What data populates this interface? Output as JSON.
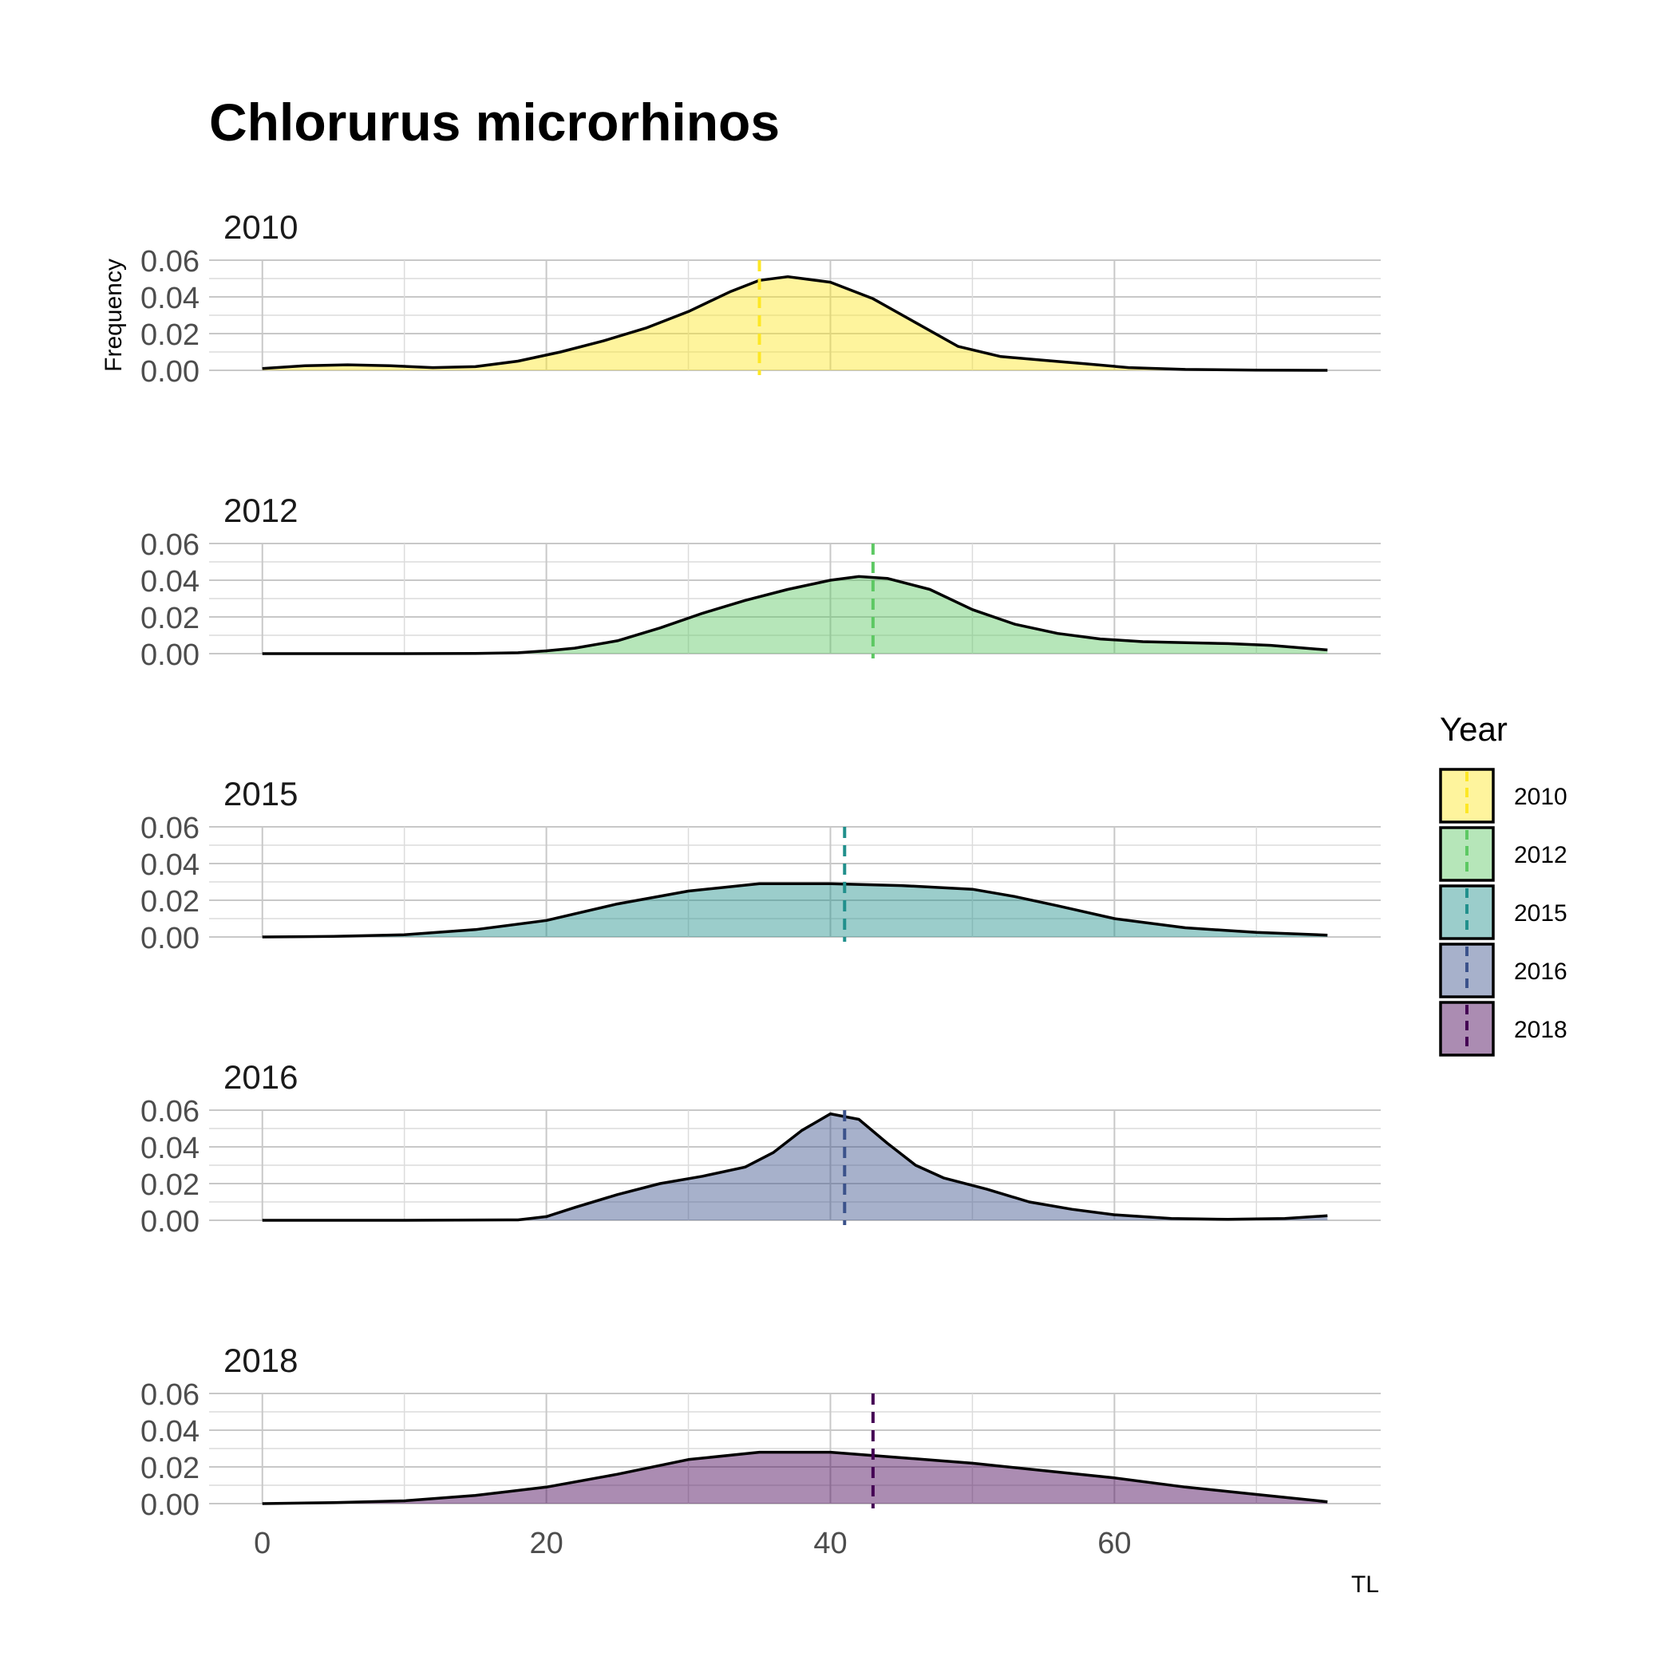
{
  "chart_data": {
    "type": "area",
    "title": "Chlorurus microrhinos",
    "xlabel": "TL",
    "ylabel": "Frequency",
    "xlim": [
      -3.75,
      78.75
    ],
    "ylim": [
      0,
      0.06
    ],
    "x_ticks": [
      0,
      20,
      40,
      60
    ],
    "x_tick_labels": [
      "0",
      "20",
      "40",
      "60"
    ],
    "y_ticks": [
      0,
      0.02,
      0.04,
      0.06
    ],
    "y_tick_labels": [
      "0.00",
      "0.02",
      "0.04",
      "0.06"
    ],
    "grid": true,
    "legend": {
      "title": "Year",
      "placement": "right",
      "entries": [
        "2010",
        "2012",
        "2015",
        "2016",
        "2018"
      ]
    },
    "series": [
      {
        "name": "2010",
        "color": "#FDE725",
        "mean": 35,
        "x": [
          0,
          3,
          6,
          9,
          12,
          15,
          18,
          21,
          24,
          27,
          30,
          33,
          35,
          37,
          40,
          43,
          46,
          49,
          52,
          55,
          58,
          61,
          65,
          70,
          75
        ],
        "y": [
          0.001,
          0.0025,
          0.003,
          0.0025,
          0.0015,
          0.002,
          0.005,
          0.01,
          0.016,
          0.023,
          0.032,
          0.043,
          0.049,
          0.051,
          0.048,
          0.039,
          0.026,
          0.013,
          0.0075,
          0.0055,
          0.0035,
          0.0015,
          0.0005,
          0.0001,
          0.0
        ]
      },
      {
        "name": "2012",
        "color": "#5DC863",
        "mean": 43,
        "x": [
          0,
          5,
          10,
          15,
          18,
          20,
          22,
          25,
          28,
          31,
          34,
          37,
          40,
          42,
          44,
          47,
          50,
          53,
          56,
          59,
          62,
          65,
          68,
          71,
          75
        ],
        "y": [
          0.0,
          0.0,
          0.0,
          0.0001,
          0.0005,
          0.0015,
          0.003,
          0.007,
          0.014,
          0.022,
          0.029,
          0.035,
          0.04,
          0.042,
          0.041,
          0.035,
          0.024,
          0.016,
          0.011,
          0.008,
          0.0065,
          0.006,
          0.0055,
          0.0045,
          0.002
        ]
      },
      {
        "name": "2015",
        "color": "#21908C",
        "mean": 41,
        "x": [
          0,
          5,
          10,
          15,
          20,
          25,
          30,
          35,
          40,
          45,
          50,
          53,
          56,
          60,
          65,
          70,
          75
        ],
        "y": [
          0.0,
          0.0003,
          0.0012,
          0.004,
          0.009,
          0.018,
          0.025,
          0.029,
          0.029,
          0.028,
          0.026,
          0.022,
          0.017,
          0.01,
          0.005,
          0.0025,
          0.001
        ]
      },
      {
        "name": "2016",
        "color": "#3B528B",
        "mean": 41,
        "x": [
          0,
          10,
          18,
          20,
          22,
          25,
          28,
          31,
          34,
          36,
          38,
          40,
          42,
          44,
          46,
          48,
          51,
          54,
          57,
          60,
          64,
          68,
          72,
          75
        ],
        "y": [
          0.0,
          0.0,
          0.0002,
          0.002,
          0.007,
          0.014,
          0.02,
          0.024,
          0.029,
          0.037,
          0.049,
          0.058,
          0.055,
          0.042,
          0.03,
          0.023,
          0.017,
          0.01,
          0.006,
          0.003,
          0.001,
          0.0005,
          0.001,
          0.0025
        ]
      },
      {
        "name": "2018",
        "color": "#440154",
        "mean": 43,
        "x": [
          0,
          5,
          10,
          15,
          20,
          25,
          30,
          35,
          40,
          45,
          50,
          55,
          60,
          65,
          70,
          75
        ],
        "y": [
          0.0,
          0.0005,
          0.0015,
          0.0045,
          0.009,
          0.016,
          0.024,
          0.028,
          0.028,
          0.025,
          0.022,
          0.018,
          0.014,
          0.009,
          0.005,
          0.001
        ]
      }
    ]
  }
}
